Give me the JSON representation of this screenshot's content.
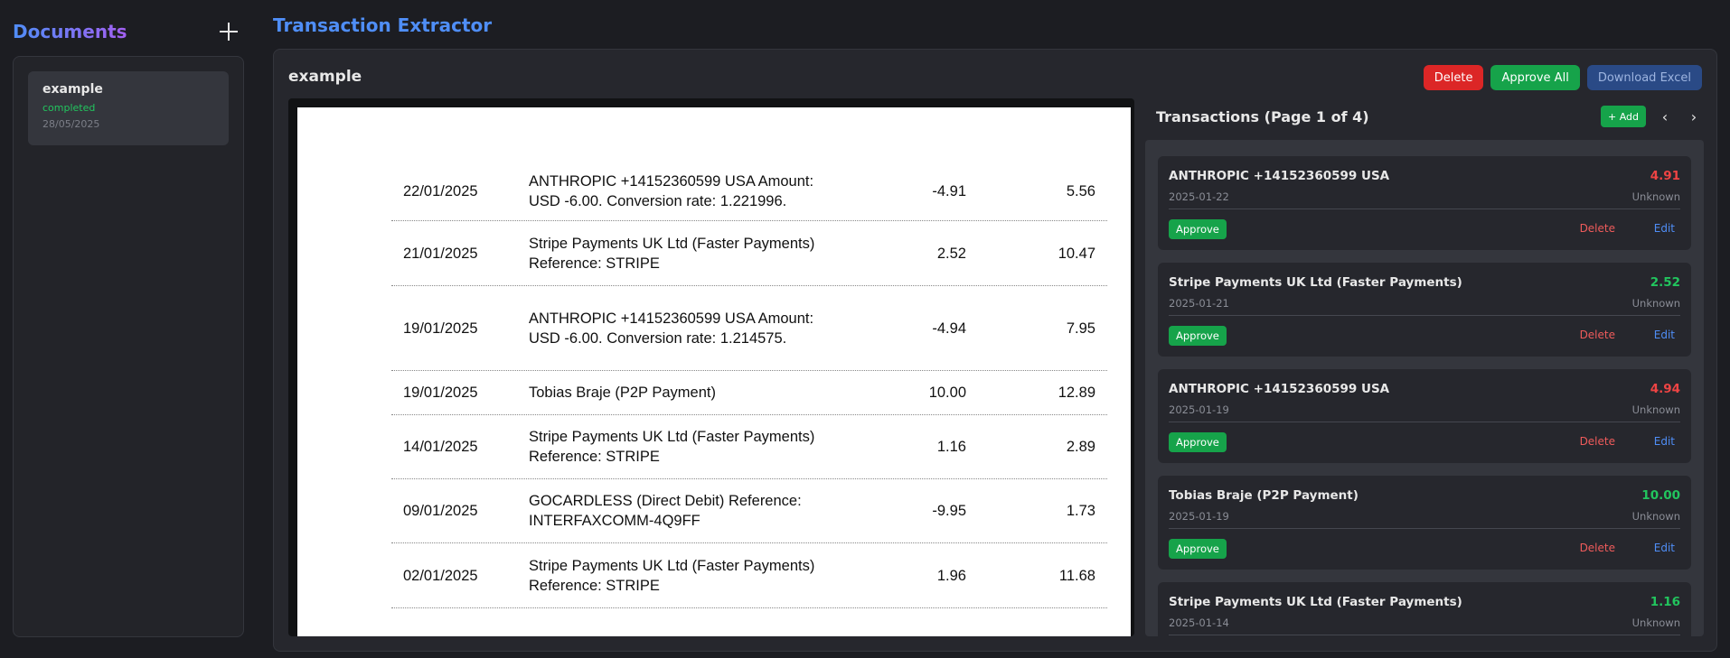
{
  "sidebar": {
    "title": "Documents",
    "add_icon": "plus-icon",
    "documents": [
      {
        "name": "example",
        "status": "completed",
        "date": "28/05/2025"
      }
    ]
  },
  "app": {
    "title": "Transaction Extractor"
  },
  "document": {
    "title": "example",
    "actions": {
      "delete": "Delete",
      "approve_all": "Approve All",
      "download": "Download Excel"
    }
  },
  "statement": {
    "rows": [
      {
        "date": "22/01/2025",
        "desc": "ANTHROPIC +14152360599 USA Amount: USD -6.00. Conversion rate: 1.221996.",
        "amount": "-4.91",
        "balance": "5.56"
      },
      {
        "date": "21/01/2025",
        "desc": "Stripe Payments UK Ltd (Faster Payments) Reference: STRIPE",
        "amount": "2.52",
        "balance": "10.47"
      },
      {
        "date": "19/01/2025",
        "desc": "ANTHROPIC +14152360599 USA Amount: USD -6.00. Conversion rate: 1.214575.",
        "amount": "-4.94",
        "balance": "7.95"
      },
      {
        "date": "19/01/2025",
        "desc": "Tobias Braje (P2P Payment)",
        "amount": "10.00",
        "balance": "12.89"
      },
      {
        "date": "14/01/2025",
        "desc": "Stripe Payments UK Ltd (Faster Payments) Reference: STRIPE",
        "amount": "1.16",
        "balance": "2.89"
      },
      {
        "date": "09/01/2025",
        "desc": "GOCARDLESS (Direct Debit) Reference: INTERFAXCOMM-4Q9FF",
        "amount": "-9.95",
        "balance": "1.73"
      },
      {
        "date": "02/01/2025",
        "desc": "Stripe Payments UK Ltd (Faster Payments) Reference: STRIPE",
        "amount": "1.96",
        "balance": "11.68"
      }
    ]
  },
  "transactions": {
    "title": "Transactions (Page 1 of 4)",
    "add_label": "+ Add",
    "prev_icon": "chevron-left-icon",
    "next_icon": "chevron-right-icon",
    "approve_label": "Approve",
    "delete_label": "Delete",
    "edit_label": "Edit",
    "items": [
      {
        "desc": "ANTHROPIC +14152360599 USA",
        "date": "2025-01-22",
        "amount": "4.91",
        "sign": "neg",
        "category": "Unknown"
      },
      {
        "desc": "Stripe Payments UK Ltd (Faster Payments)",
        "date": "2025-01-21",
        "amount": "2.52",
        "sign": "pos",
        "category": "Unknown"
      },
      {
        "desc": "ANTHROPIC +14152360599 USA",
        "date": "2025-01-19",
        "amount": "4.94",
        "sign": "neg",
        "category": "Unknown"
      },
      {
        "desc": "Tobias Braje (P2P Payment)",
        "date": "2025-01-19",
        "amount": "10.00",
        "sign": "pos",
        "category": "Unknown"
      },
      {
        "desc": "Stripe Payments UK Ltd (Faster Payments)",
        "date": "2025-01-14",
        "amount": "1.16",
        "sign": "pos",
        "category": "Unknown"
      }
    ],
    "colors": {
      "negative": "#ef4444",
      "positive": "#22c55e"
    }
  }
}
